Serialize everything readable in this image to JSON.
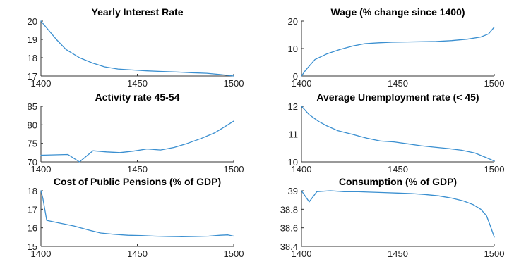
{
  "figure": {
    "line_color": "#3a8fd0",
    "axis_color": "#333333"
  },
  "chart_data": [
    {
      "type": "line",
      "title": "Yearly Interest Rate",
      "xlim": [
        1400,
        1500
      ],
      "ylim": [
        17,
        20
      ],
      "xticks": [
        1400,
        1450,
        1500
      ],
      "yticks": [
        17,
        18,
        19,
        20
      ],
      "series": [
        {
          "x": [
            1400,
            1404,
            1408,
            1413,
            1420,
            1427,
            1433,
            1440,
            1447,
            1455,
            1462,
            1470,
            1478,
            1486,
            1493,
            1500
          ],
          "y": [
            20.0,
            19.5,
            19.0,
            18.45,
            18.0,
            17.7,
            17.5,
            17.38,
            17.33,
            17.28,
            17.25,
            17.22,
            17.18,
            17.15,
            17.08,
            17.0
          ]
        }
      ]
    },
    {
      "type": "line",
      "title": "Wage (% change since 1400)",
      "xlim": [
        1400,
        1500
      ],
      "ylim": [
        0,
        20
      ],
      "xticks": [
        1400,
        1450,
        1500
      ],
      "yticks": [
        0,
        10,
        20
      ],
      "series": [
        {
          "x": [
            1400,
            1402,
            1407,
            1413,
            1420,
            1427,
            1433,
            1440,
            1447,
            1455,
            1462,
            1470,
            1478,
            1486,
            1493,
            1497,
            1500
          ],
          "y": [
            0,
            2.0,
            6.0,
            8.0,
            9.7,
            11.0,
            11.8,
            12.1,
            12.3,
            12.4,
            12.5,
            12.6,
            12.9,
            13.4,
            14.2,
            15.3,
            17.8
          ]
        }
      ]
    },
    {
      "type": "line",
      "title": "Activity rate 45-54",
      "xlim": [
        1400,
        1500
      ],
      "ylim": [
        70,
        85
      ],
      "xticks": [
        1400,
        1450,
        1500
      ],
      "yticks": [
        70,
        75,
        80,
        85
      ],
      "series": [
        {
          "x": [
            1400,
            1407,
            1414,
            1420,
            1427,
            1434,
            1441,
            1448,
            1455,
            1462,
            1469,
            1476,
            1483,
            1490,
            1496,
            1500
          ],
          "y": [
            71.8,
            71.9,
            72.0,
            70.0,
            73.0,
            72.7,
            72.5,
            72.9,
            73.5,
            73.2,
            73.9,
            75.0,
            76.3,
            77.8,
            79.7,
            81.0
          ]
        }
      ]
    },
    {
      "type": "line",
      "title": "Average Unemployment rate (< 45)",
      "xlim": [
        1400,
        1500
      ],
      "ylim": [
        10,
        12
      ],
      "xticks": [
        1400,
        1450,
        1500
      ],
      "yticks": [
        10,
        11,
        12
      ],
      "series": [
        {
          "x": [
            1400,
            1404,
            1409,
            1413,
            1419,
            1427,
            1434,
            1441,
            1448,
            1455,
            1462,
            1469,
            1476,
            1483,
            1490,
            1496,
            1500
          ],
          "y": [
            12.0,
            11.7,
            11.45,
            11.3,
            11.12,
            10.98,
            10.85,
            10.75,
            10.72,
            10.65,
            10.58,
            10.53,
            10.48,
            10.42,
            10.32,
            10.15,
            10.03
          ]
        }
      ]
    },
    {
      "type": "line",
      "title": "Cost of Public Pensions (% of GDP)",
      "xlim": [
        1400,
        1500
      ],
      "ylim": [
        15,
        18
      ],
      "xticks": [
        1400,
        1450,
        1500
      ],
      "yticks": [
        15,
        16,
        17,
        18
      ],
      "series": [
        {
          "x": [
            1400,
            1401,
            1403,
            1410,
            1417,
            1424,
            1431,
            1438,
            1445,
            1452,
            1459,
            1466,
            1473,
            1480,
            1487,
            1493,
            1497,
            1500
          ],
          "y": [
            18.0,
            17.6,
            16.4,
            16.25,
            16.1,
            15.9,
            15.72,
            15.65,
            15.6,
            15.58,
            15.55,
            15.53,
            15.52,
            15.53,
            15.55,
            15.6,
            15.62,
            15.55
          ]
        }
      ]
    },
    {
      "type": "line",
      "title": "Consumption (% of GDP)",
      "xlim": [
        1400,
        1500
      ],
      "ylim": [
        38.4,
        39
      ],
      "xticks": [
        1400,
        1450,
        1500
      ],
      "yticks": [
        38.4,
        38.6,
        38.8,
        39
      ],
      "series": [
        {
          "x": [
            1400,
            1404,
            1408,
            1415,
            1422,
            1429,
            1436,
            1443,
            1450,
            1457,
            1464,
            1471,
            1478,
            1484,
            1489,
            1493,
            1496,
            1498,
            1500
          ],
          "y": [
            39.0,
            38.88,
            38.99,
            39.0,
            38.99,
            38.99,
            38.985,
            38.98,
            38.975,
            38.97,
            38.96,
            38.945,
            38.92,
            38.89,
            38.85,
            38.8,
            38.73,
            38.62,
            38.5
          ]
        }
      ]
    }
  ]
}
